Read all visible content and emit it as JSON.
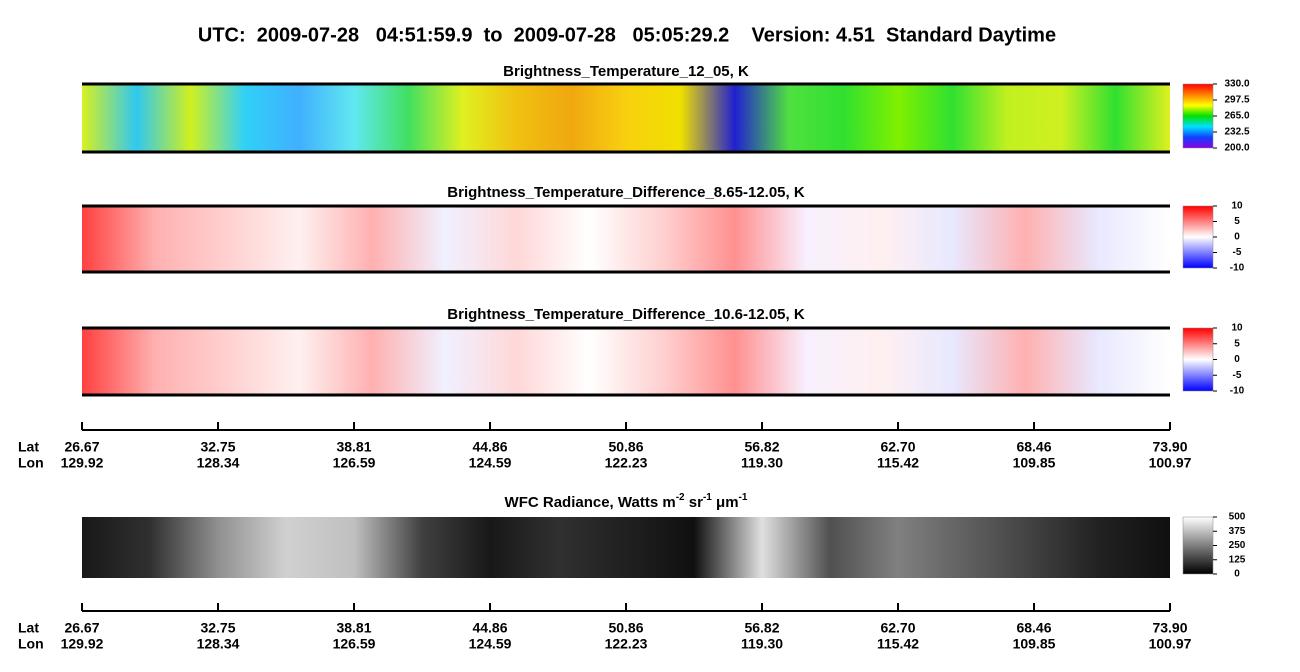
{
  "title": "UTC:  2009-07-28   04:51:59.9  to  2009-07-28   05:05:29.2    Version: 4.51  Standard Daytime",
  "panels": [
    {
      "title": "Brightness_Temperature_12_05, K",
      "palette": "rainbow",
      "lim": [
        200,
        330
      ],
      "ticks": [
        {
          "value": 330,
          "label": "330.0"
        },
        {
          "value": 297.5,
          "label": "297.5"
        },
        {
          "value": 265,
          "label": "265.0"
        },
        {
          "value": 232.5,
          "label": "232.5"
        },
        {
          "value": 200,
          "label": "200.0"
        }
      ]
    },
    {
      "title": "Brightness_Temperature_Difference_8.65-12.05, K",
      "palette": "diverging",
      "lim": [
        -10,
        10
      ],
      "ticks": [
        10,
        5,
        0,
        -5,
        -10
      ]
    },
    {
      "title": "Brightness_Temperature_Difference_10.6-12.05, K",
      "palette": "diverging",
      "lim": [
        -10,
        10
      ],
      "ticks": [
        10,
        5,
        0,
        -5,
        -10
      ]
    },
    {
      "title_parts": [
        "WFC Radiance, Watts m",
        "-2",
        " sr",
        "-1",
        " μm",
        "-1"
      ],
      "palette": "gray",
      "lim": [
        0,
        500
      ],
      "ticks": [
        500,
        375,
        250,
        125,
        0
      ]
    }
  ],
  "axis": {
    "lat_label": "Lat",
    "lon_label": "Lon",
    "lat": [
      "26.67",
      "32.75",
      "38.81",
      "44.86",
      "50.86",
      "56.82",
      "62.70",
      "68.46",
      "73.90"
    ],
    "lon": [
      "129.92",
      "128.34",
      "126.59",
      "124.59",
      "122.23",
      "119.30",
      "115.42",
      "109.85",
      "100.97"
    ]
  }
}
